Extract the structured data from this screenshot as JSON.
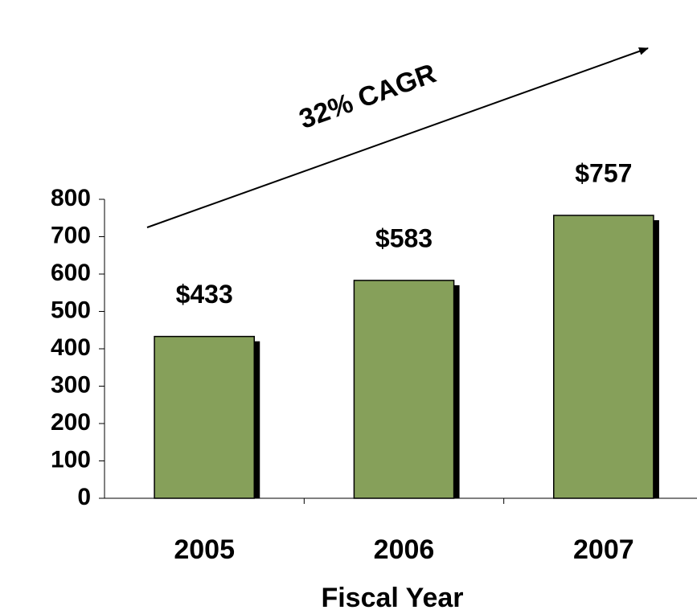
{
  "chart_data": {
    "type": "bar",
    "annotation": "32% CAGR",
    "x_label": "Fiscal Year",
    "categories": [
      "2005",
      "2006",
      "2007"
    ],
    "values": [
      433,
      583,
      757
    ],
    "value_labels": [
      "$433",
      "$583",
      "$757"
    ],
    "color": "#86a05a",
    "ylim": [
      0,
      800
    ],
    "yticks": [
      0,
      100,
      200,
      300,
      400,
      500,
      600,
      700,
      800
    ],
    "grid": false
  }
}
